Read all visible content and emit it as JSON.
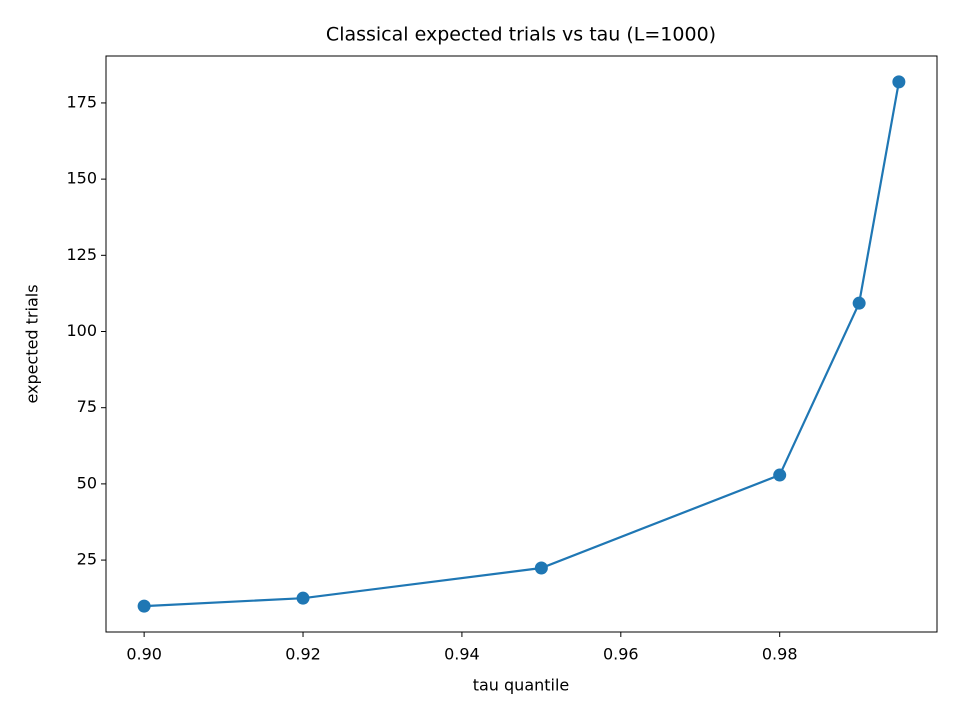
{
  "chart_data": {
    "type": "line",
    "title": "Classical expected trials vs tau (L=1000)",
    "x_label": "tau quantile",
    "y_label": "expected trials",
    "x": [
      0.9,
      0.92,
      0.95,
      0.98,
      0.99,
      0.995
    ],
    "series": [
      {
        "color": "#1f77b4",
        "values": [
          9.9,
          12.5,
          22.4,
          52.9,
          109.3,
          181.9
        ]
      }
    ],
    "xlim": [
      0.8952,
      0.9998
    ],
    "xticks": [
      {
        "value": 0.9,
        "label": "0.90"
      },
      {
        "value": 0.92,
        "label": "0.92"
      },
      {
        "value": 0.94,
        "label": "0.94"
      },
      {
        "value": 0.96,
        "label": "0.96"
      },
      {
        "value": 0.98,
        "label": "0.98"
      }
    ],
    "ylim": [
      1.4,
      190.4
    ],
    "yticks": [
      25,
      50,
      75,
      100,
      125,
      150,
      175
    ],
    "grid": false
  }
}
